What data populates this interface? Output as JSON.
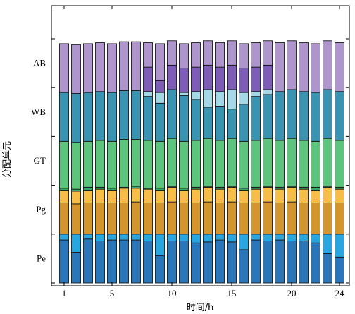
{
  "chart_data": {
    "type": "bar",
    "stacked": true,
    "xlabel": "时间/h",
    "ylabel": "分配单元",
    "x": [
      1,
      2,
      3,
      4,
      5,
      6,
      7,
      8,
      9,
      10,
      11,
      12,
      13,
      14,
      15,
      16,
      17,
      18,
      19,
      20,
      21,
      22,
      23,
      24
    ],
    "x_ticks": [
      1,
      5,
      10,
      15,
      20,
      24
    ],
    "y_ticks": [
      "Pe",
      "Pg",
      "GT",
      "WB",
      "AB"
    ],
    "ylim": [
      0,
      5
    ],
    "legend": "none",
    "grid": false,
    "series": [
      {
        "group": "Pe",
        "tone": "dark",
        "color": "#2b76b9",
        "values": [
          0.88,
          0.63,
          0.9,
          0.86,
          0.88,
          0.88,
          0.88,
          0.86,
          0.56,
          0.86,
          0.86,
          0.82,
          0.84,
          0.88,
          0.84,
          0.68,
          0.88,
          0.86,
          0.88,
          0.86,
          0.86,
          0.82,
          0.6,
          0.53
        ]
      },
      {
        "group": "Pe",
        "tone": "light",
        "color": "#29a6df",
        "values": [
          0.12,
          0.37,
          0.1,
          0.14,
          0.12,
          0.12,
          0.12,
          0.14,
          0.44,
          0.14,
          0.14,
          0.18,
          0.16,
          0.12,
          0.16,
          0.32,
          0.12,
          0.14,
          0.12,
          0.14,
          0.14,
          0.18,
          0.4,
          0.47
        ]
      },
      {
        "group": "Pg",
        "tone": "dark",
        "color": "#d3962f",
        "values": [
          0.64,
          0.62,
          0.64,
          0.64,
          0.64,
          0.64,
          0.66,
          0.64,
          0.64,
          0.66,
          0.64,
          0.64,
          0.66,
          0.64,
          0.66,
          0.64,
          0.64,
          0.66,
          0.64,
          0.66,
          0.64,
          0.64,
          0.64,
          0.64
        ]
      },
      {
        "group": "Pg",
        "tone": "light",
        "color": "#f6be49",
        "values": [
          0.26,
          0.26,
          0.26,
          0.28,
          0.26,
          0.3,
          0.28,
          0.28,
          0.26,
          0.3,
          0.26,
          0.28,
          0.3,
          0.28,
          0.3,
          0.26,
          0.28,
          0.3,
          0.28,
          0.3,
          0.28,
          0.26,
          0.32,
          0.28
        ]
      },
      {
        "group": "GT",
        "tone": "dark",
        "color": "#37a865",
        "values": [
          0.04,
          0.04,
          0.06,
          0.04,
          0.04,
          0.02,
          0.04,
          0.02,
          0.04,
          0.02,
          0.04,
          0.04,
          0.02,
          0.04,
          0.02,
          0.04,
          0.04,
          0.02,
          0.04,
          0.02,
          0.04,
          0.06,
          0.02,
          0.04
        ]
      },
      {
        "group": "GT",
        "tone": "light",
        "color": "#5cc47c",
        "values": [
          0.96,
          0.96,
          0.94,
          0.96,
          0.96,
          0.98,
          0.96,
          0.98,
          0.96,
          0.98,
          0.96,
          0.96,
          0.98,
          0.96,
          0.98,
          0.96,
          0.96,
          0.98,
          0.96,
          0.98,
          0.96,
          0.94,
          0.98,
          0.96
        ]
      },
      {
        "group": "WB",
        "tone": "dark",
        "color": "#3a94b1",
        "values": [
          1.0,
          1.0,
          1.0,
          1.0,
          1.0,
          1.0,
          1.0,
          0.9,
          0.78,
          1.0,
          0.94,
          0.84,
          0.64,
          0.7,
          0.6,
          0.76,
          0.9,
          0.9,
          1.0,
          1.0,
          1.0,
          1.0,
          1.0,
          1.0
        ]
      },
      {
        "group": "WB",
        "tone": "light",
        "color": "#a5d8e6",
        "values": [
          0.0,
          0.0,
          0.0,
          0.0,
          0.0,
          0.0,
          0.0,
          0.1,
          0.22,
          0.0,
          0.06,
          0.16,
          0.36,
          0.3,
          0.4,
          0.24,
          0.1,
          0.1,
          0.0,
          0.0,
          0.0,
          0.0,
          0.0,
          0.0
        ]
      },
      {
        "group": "AB",
        "tone": "dark",
        "color": "#7d5db5",
        "values": [
          0.0,
          0.0,
          0.0,
          0.0,
          0.0,
          0.0,
          0.0,
          0.5,
          0.24,
          0.5,
          0.5,
          0.5,
          0.5,
          0.5,
          0.5,
          0.5,
          0.5,
          0.5,
          0.0,
          0.0,
          0.0,
          0.0,
          0.0,
          0.0
        ]
      },
      {
        "group": "AB",
        "tone": "light",
        "color": "#ae96cd",
        "values": [
          1.0,
          1.0,
          1.0,
          1.0,
          1.0,
          1.0,
          1.0,
          0.5,
          0.76,
          0.5,
          0.5,
          0.5,
          0.5,
          0.5,
          0.5,
          0.5,
          0.5,
          0.5,
          1.0,
          1.0,
          1.0,
          1.0,
          1.0,
          1.0
        ]
      }
    ]
  }
}
